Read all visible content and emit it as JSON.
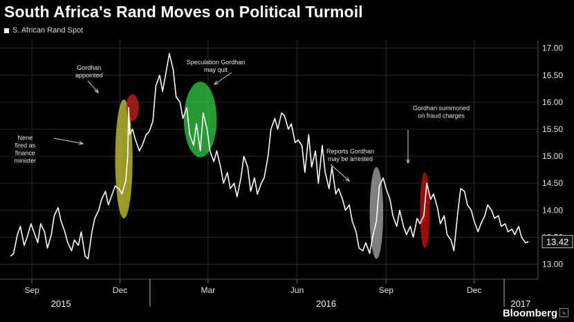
{
  "header": {
    "title": "South Africa's Rand Moves on Political Turmoil",
    "legend_label": "S. African Rand Spot",
    "brand": "Bloomberg"
  },
  "colors": {
    "background": "#000000",
    "line": "#ffffff",
    "grid": "#2a2a2a",
    "yellow": "#cccc33",
    "red_circle": "#cc2222",
    "green": "#33cc44",
    "gray": "#aaaaaa",
    "red_ellipse": "#cc1111"
  },
  "chart_data": {
    "type": "line",
    "title": "South Africa's Rand Moves on Political Turmoil",
    "series": [
      {
        "name": "S. African Rand Spot",
        "points": [
          [
            "2015-08-10",
            13.15
          ],
          [
            "2015-08-13",
            13.2
          ],
          [
            "2015-08-17",
            13.55
          ],
          [
            "2015-08-20",
            13.7
          ],
          [
            "2015-08-24",
            13.35
          ],
          [
            "2015-08-27",
            13.5
          ],
          [
            "2015-08-31",
            13.75
          ],
          [
            "2015-09-03",
            13.6
          ],
          [
            "2015-09-07",
            13.4
          ],
          [
            "2015-09-10",
            13.75
          ],
          [
            "2015-09-14",
            13.6
          ],
          [
            "2015-09-17",
            13.3
          ],
          [
            "2015-09-21",
            13.55
          ],
          [
            "2015-09-24",
            13.9
          ],
          [
            "2015-09-28",
            14.05
          ],
          [
            "2015-10-01",
            13.8
          ],
          [
            "2015-10-05",
            13.6
          ],
          [
            "2015-10-08",
            13.4
          ],
          [
            "2015-10-12",
            13.25
          ],
          [
            "2015-10-15",
            13.45
          ],
          [
            "2015-10-19",
            13.35
          ],
          [
            "2015-10-22",
            13.6
          ],
          [
            "2015-10-26",
            13.15
          ],
          [
            "2015-10-29",
            13.1
          ],
          [
            "2015-11-02",
            13.6
          ],
          [
            "2015-11-05",
            13.85
          ],
          [
            "2015-11-09",
            14.0
          ],
          [
            "2015-11-12",
            14.2
          ],
          [
            "2015-11-16",
            14.35
          ],
          [
            "2015-11-19",
            14.1
          ],
          [
            "2015-11-23",
            14.3
          ],
          [
            "2015-11-26",
            14.45
          ],
          [
            "2015-11-30",
            14.4
          ],
          [
            "2015-12-03",
            14.3
          ],
          [
            "2015-12-07",
            14.55
          ],
          [
            "2015-12-09",
            15.0
          ],
          [
            "2015-12-10",
            15.9
          ],
          [
            "2015-12-11",
            15.4
          ],
          [
            "2015-12-14",
            15.5
          ],
          [
            "2015-12-17",
            15.3
          ],
          [
            "2015-12-21",
            15.1
          ],
          [
            "2015-12-24",
            15.2
          ],
          [
            "2015-12-28",
            15.4
          ],
          [
            "2015-12-31",
            15.45
          ],
          [
            "2016-01-04",
            15.65
          ],
          [
            "2016-01-07",
            16.3
          ],
          [
            "2016-01-11",
            16.5
          ],
          [
            "2016-01-14",
            16.2
          ],
          [
            "2016-01-18",
            16.6
          ],
          [
            "2016-01-21",
            16.9
          ],
          [
            "2016-01-25",
            16.6
          ],
          [
            "2016-01-28",
            16.1
          ],
          [
            "2016-02-01",
            16.0
          ],
          [
            "2016-02-04",
            15.7
          ],
          [
            "2016-02-08",
            15.9
          ],
          [
            "2016-02-11",
            15.4
          ],
          [
            "2016-02-15",
            15.2
          ],
          [
            "2016-02-18",
            15.6
          ],
          [
            "2016-02-22",
            15.1
          ],
          [
            "2016-02-25",
            15.8
          ],
          [
            "2016-02-29",
            15.5
          ],
          [
            "2016-03-03",
            15.1
          ],
          [
            "2016-03-07",
            14.9
          ],
          [
            "2016-03-10",
            15.1
          ],
          [
            "2016-03-14",
            14.8
          ],
          [
            "2016-03-17",
            14.5
          ],
          [
            "2016-03-21",
            14.7
          ],
          [
            "2016-03-24",
            14.4
          ],
          [
            "2016-03-28",
            14.5
          ],
          [
            "2016-03-31",
            14.25
          ],
          [
            "2016-04-04",
            14.6
          ],
          [
            "2016-04-07",
            15.0
          ],
          [
            "2016-04-11",
            14.8
          ],
          [
            "2016-04-14",
            14.35
          ],
          [
            "2016-04-18",
            14.6
          ],
          [
            "2016-04-21",
            14.3
          ],
          [
            "2016-04-25",
            14.5
          ],
          [
            "2016-04-28",
            14.6
          ],
          [
            "2016-05-02",
            15.0
          ],
          [
            "2016-05-05",
            15.5
          ],
          [
            "2016-05-09",
            15.7
          ],
          [
            "2016-05-12",
            15.5
          ],
          [
            "2016-05-16",
            15.8
          ],
          [
            "2016-05-19",
            15.75
          ],
          [
            "2016-05-23",
            15.5
          ],
          [
            "2016-05-26",
            15.6
          ],
          [
            "2016-05-30",
            15.25
          ],
          [
            "2016-06-02",
            15.3
          ],
          [
            "2016-06-06",
            15.2
          ],
          [
            "2016-06-09",
            14.7
          ],
          [
            "2016-06-13",
            15.4
          ],
          [
            "2016-06-16",
            14.8
          ],
          [
            "2016-06-20",
            15.1
          ],
          [
            "2016-06-23",
            14.5
          ],
          [
            "2016-06-27",
            15.2
          ],
          [
            "2016-06-30",
            14.7
          ],
          [
            "2016-07-04",
            14.4
          ],
          [
            "2016-07-07",
            14.8
          ],
          [
            "2016-07-11",
            14.3
          ],
          [
            "2016-07-14",
            14.4
          ],
          [
            "2016-07-18",
            14.2
          ],
          [
            "2016-07-21",
            14.0
          ],
          [
            "2016-07-25",
            14.1
          ],
          [
            "2016-07-28",
            13.8
          ],
          [
            "2016-08-01",
            13.6
          ],
          [
            "2016-08-04",
            13.3
          ],
          [
            "2016-08-08",
            13.25
          ],
          [
            "2016-08-11",
            13.4
          ],
          [
            "2016-08-15",
            13.2
          ],
          [
            "2016-08-18",
            13.5
          ],
          [
            "2016-08-22",
            13.8
          ],
          [
            "2016-08-25",
            14.45
          ],
          [
            "2016-08-29",
            14.6
          ],
          [
            "2016-09-01",
            14.4
          ],
          [
            "2016-09-05",
            14.2
          ],
          [
            "2016-09-08",
            13.9
          ],
          [
            "2016-09-12",
            13.7
          ],
          [
            "2016-09-15",
            14.0
          ],
          [
            "2016-09-19",
            13.7
          ],
          [
            "2016-09-22",
            13.55
          ],
          [
            "2016-09-26",
            13.7
          ],
          [
            "2016-09-29",
            13.5
          ],
          [
            "2016-10-03",
            13.85
          ],
          [
            "2016-10-06",
            13.75
          ],
          [
            "2016-10-10",
            13.9
          ],
          [
            "2016-10-13",
            14.5
          ],
          [
            "2016-10-17",
            14.2
          ],
          [
            "2016-10-20",
            14.3
          ],
          [
            "2016-10-24",
            14.05
          ],
          [
            "2016-10-27",
            13.75
          ],
          [
            "2016-10-31",
            13.9
          ],
          [
            "2016-11-03",
            13.55
          ],
          [
            "2016-11-07",
            13.45
          ],
          [
            "2016-11-10",
            13.25
          ],
          [
            "2016-11-14",
            13.95
          ],
          [
            "2016-11-17",
            14.4
          ],
          [
            "2016-11-21",
            14.35
          ],
          [
            "2016-11-24",
            14.1
          ],
          [
            "2016-11-28",
            14.0
          ],
          [
            "2016-12-01",
            13.8
          ],
          [
            "2016-12-05",
            13.6
          ],
          [
            "2016-12-08",
            13.75
          ],
          [
            "2016-12-12",
            13.9
          ],
          [
            "2016-12-15",
            14.1
          ],
          [
            "2016-12-19",
            14.0
          ],
          [
            "2016-12-22",
            13.85
          ],
          [
            "2016-12-26",
            13.9
          ],
          [
            "2016-12-29",
            13.7
          ],
          [
            "2017-01-02",
            13.75
          ],
          [
            "2017-01-05",
            13.6
          ],
          [
            "2017-01-09",
            13.65
          ],
          [
            "2017-01-12",
            13.55
          ],
          [
            "2017-01-16",
            13.7
          ],
          [
            "2017-01-19",
            13.5
          ],
          [
            "2017-01-23",
            13.4
          ],
          [
            "2017-01-26",
            13.42
          ]
        ]
      }
    ],
    "y_ticks": [
      "13.00",
      "13.50",
      "14.00",
      "14.50",
      "15.00",
      "15.50",
      "16.00",
      "16.50",
      "17.00"
    ],
    "ylim": [
      12.75,
      17.15
    ],
    "xlim": [
      "2015-07-30",
      "2017-02-05"
    ],
    "month_ticks": [
      {
        "label": "Sep",
        "date": "2015-09-01"
      },
      {
        "label": "Dec",
        "date": "2015-12-01"
      },
      {
        "label": "Mar",
        "date": "2016-03-01"
      },
      {
        "label": "Jun",
        "date": "2016-06-01"
      },
      {
        "label": "Sep",
        "date": "2016-09-01"
      },
      {
        "label": "Dec",
        "date": "2016-12-01"
      }
    ],
    "year_labels": [
      {
        "label": "2015",
        "date": "2015-10-01"
      },
      {
        "label": "2016",
        "date": "2016-07-01"
      },
      {
        "label": "2017",
        "date": "2017-01-18"
      }
    ],
    "year_boundaries": [
      "2016-01-01",
      "2017-01-01"
    ],
    "last_value_label": "13.42",
    "grid": true,
    "annotations": [
      {
        "text": "Nene|fired as|finance|minister",
        "date": "2015-08-25",
        "value": 15.3
      },
      {
        "text": "Gordhan|appointed",
        "date": "2015-10-30",
        "value": 16.6
      },
      {
        "text": "Speculation Gordhan|may quit",
        "date": "2016-03-09",
        "value": 16.7
      },
      {
        "text": "Reports Gordhan|may be arrested",
        "date": "2016-07-26",
        "value": 15.05
      },
      {
        "text": "Gordhan summoned|on fraud charges",
        "date": "2016-10-28",
        "value": 15.85
      }
    ],
    "highlights": [
      {
        "color": "yellow",
        "date": "2015-12-05",
        "value": 14.95,
        "rx_days": 9,
        "ry_value": 1.1
      },
      {
        "color": "red_circle",
        "date": "2015-12-14",
        "value": 15.9,
        "rx_days": 6.5,
        "ry_value": 0.25
      },
      {
        "color": "green",
        "date": "2016-02-22",
        "value": 15.68,
        "rx_days": 17,
        "ry_value": 0.7
      },
      {
        "color": "gray",
        "date": "2016-08-22",
        "value": 13.95,
        "rx_days": 7,
        "ry_value": 0.85
      },
      {
        "color": "red_ellipse",
        "date": "2016-10-11",
        "value": 14.0,
        "rx_days": 5,
        "ry_value": 0.7
      }
    ]
  }
}
